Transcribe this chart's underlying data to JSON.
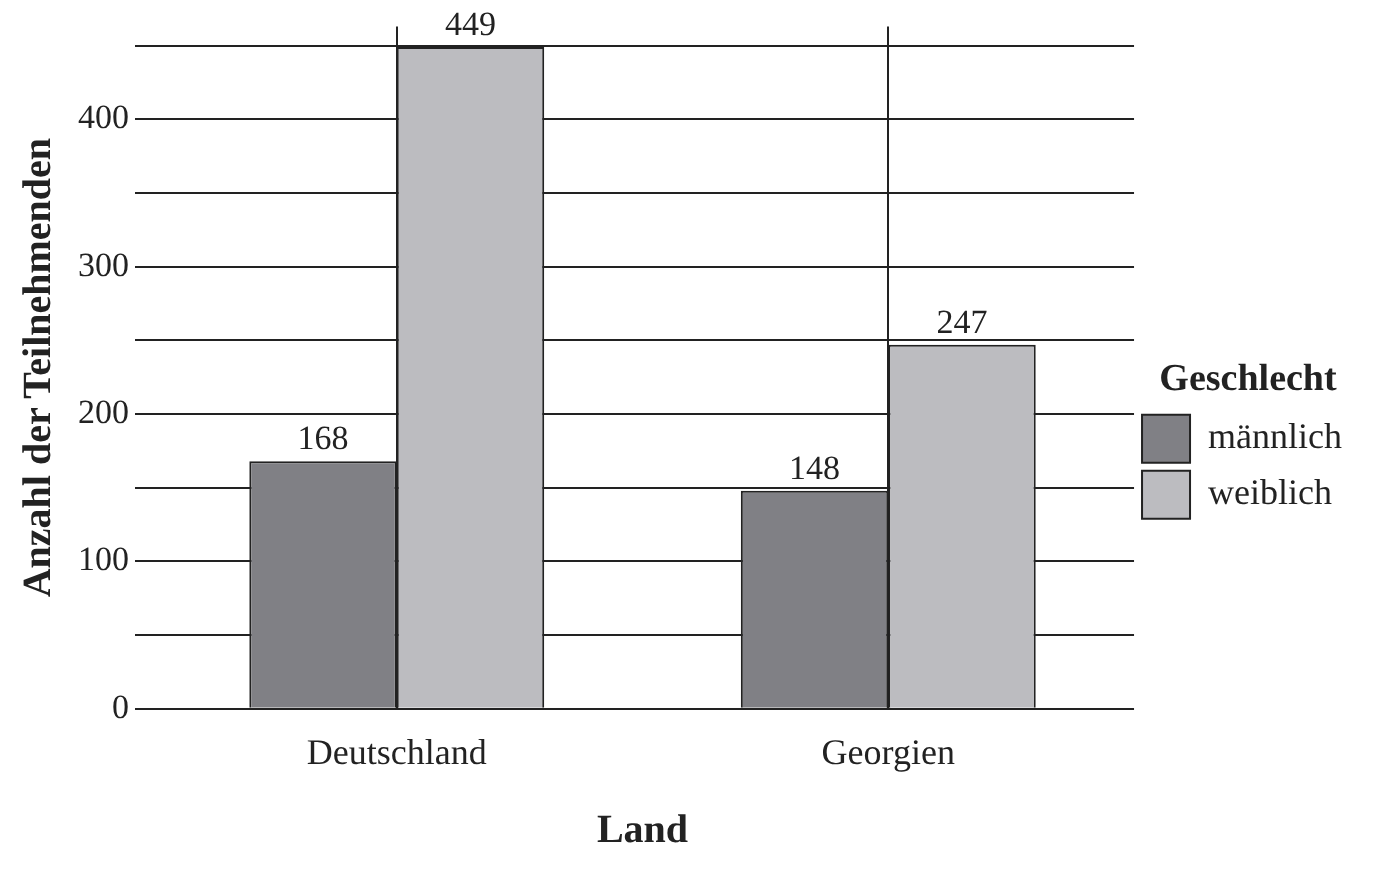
{
  "chart_data": {
    "type": "bar",
    "xlabel": "Land",
    "ylabel": "Anzahl der Teilnehmenden",
    "legend_title": "Geschlecht",
    "categories": [
      "Deutschland",
      "Georgien"
    ],
    "series": [
      {
        "name": "männlich",
        "color": "#808085",
        "values": [
          168,
          148
        ]
      },
      {
        "name": "weiblich",
        "color": "#bcbcc0",
        "values": [
          449,
          247
        ]
      }
    ],
    "ylim": [
      0,
      463
    ],
    "yticks": [
      0,
      {
        "value": 50,
        "label": null
      },
      100,
      {
        "value": 150,
        "label": null
      },
      200,
      {
        "value": 250,
        "label": null
      },
      300,
      {
        "value": 350,
        "label": null
      },
      400,
      {
        "value": 450,
        "label": null
      }
    ],
    "grid": true,
    "legend": "right",
    "data_labels": true
  }
}
